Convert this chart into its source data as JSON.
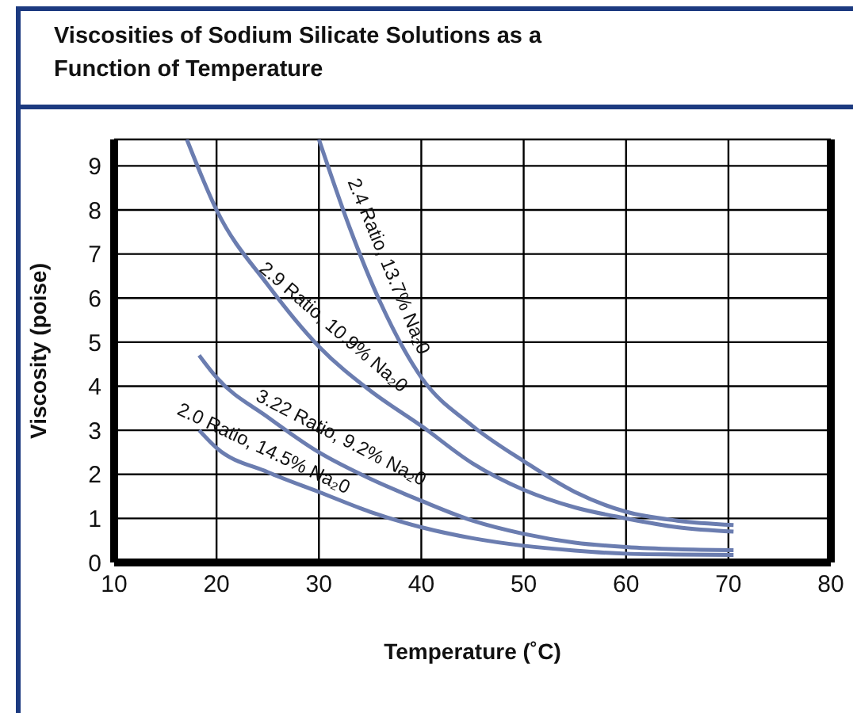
{
  "chart_data": {
    "type": "line",
    "title": "Viscosities of Sodium Silicate Solutions as a Function of Temperature",
    "xlabel": "Temperature (˚C)",
    "ylabel": "Viscosity (poise)",
    "xlim": [
      10,
      80
    ],
    "xticks": [
      10,
      20,
      30,
      40,
      50,
      60,
      70,
      80
    ],
    "ylim": [
      0,
      9.6
    ],
    "yticks": [
      0,
      1,
      2,
      3,
      4,
      5,
      6,
      7,
      8,
      9
    ],
    "grid": true,
    "marker": "none",
    "series": [
      {
        "color": "#6b7db0",
        "x": [
          30,
          33,
          36,
          40,
          45,
          50,
          55,
          60,
          65,
          70.5
        ],
        "values": [
          9.6,
          7.6,
          5.9,
          4.2,
          3.1,
          2.3,
          1.6,
          1.15,
          0.95,
          0.85
        ]
      },
      {
        "color": "#6b7db0",
        "x": [
          17.1,
          20,
          25,
          30,
          35,
          40,
          45,
          50,
          55,
          60,
          65,
          70.5
        ],
        "values": [
          9.6,
          8.0,
          6.3,
          4.9,
          3.9,
          3.1,
          2.25,
          1.65,
          1.25,
          1.0,
          0.8,
          0.7
        ]
      },
      {
        "color": "#6b7db0",
        "x": [
          18.3,
          20,
          25,
          30,
          35,
          40,
          45,
          50,
          55,
          60,
          65,
          70.5
        ],
        "values": [
          4.7,
          4.2,
          3.3,
          2.5,
          1.9,
          1.4,
          0.95,
          0.65,
          0.45,
          0.35,
          0.3,
          0.28
        ]
      },
      {
        "color": "#6b7db0",
        "x": [
          18.3,
          20,
          25,
          30,
          35,
          40,
          45,
          50,
          55,
          60,
          65,
          70.5
        ],
        "values": [
          3.0,
          2.6,
          2.05,
          1.6,
          1.15,
          0.8,
          0.55,
          0.38,
          0.27,
          0.2,
          0.18,
          0.17
        ]
      }
    ],
    "annotations": [
      {
        "text": "2.4 Ratio, 13.7% Na₂0",
        "x": 35.5,
        "y": 6.6
      },
      {
        "text": "2.9 Ratio, 10.9% Na₂0",
        "x": 30.5,
        "y": 5.1
      },
      {
        "text": "3.22 Ratio, 9.2% Na₂0",
        "x": 31.5,
        "y": 2.55
      },
      {
        "text": "2.0 Ratio, 14.5% Na₂0",
        "x": 24,
        "y": 2.3
      }
    ]
  }
}
